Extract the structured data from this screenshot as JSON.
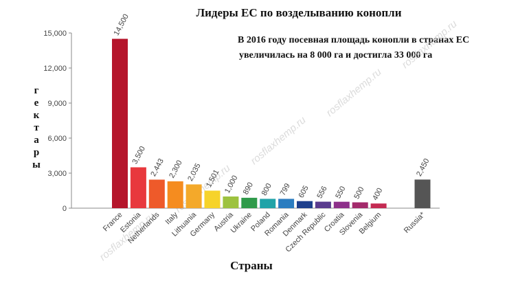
{
  "chart_data": {
    "type": "bar",
    "title": "Лидеры ЕС по возделыванию конопли",
    "annotation": [
      "В 2016 году посевная площадь конопли в странах ЕС",
      "увеличилась на 8 000 га и достигла 33 000 га"
    ],
    "y_label": "гектары",
    "x_label": "Страны",
    "categories": [
      "France",
      "Estonia",
      "Netherlands",
      "Italy",
      "Lithuania",
      "Germany",
      "Austria",
      "Ukraine",
      "Poland",
      "Romania",
      "Denmark",
      "Czech Republic",
      "Croatia",
      "Slovenia",
      "Belgium",
      "Russia*"
    ],
    "values": [
      14500,
      3500,
      2443,
      2300,
      2035,
      1501,
      1000,
      890,
      800,
      799,
      605,
      556,
      550,
      500,
      400,
      2450
    ],
    "value_labels": [
      "14,500",
      "3,500",
      "2,443",
      "2,300",
      "2,035",
      "1,501",
      "1,000",
      "890",
      "800",
      "799",
      "605",
      "556",
      "550",
      "500",
      "400",
      "2,450"
    ],
    "colors": [
      "#b5152b",
      "#e8383d",
      "#ee5a2a",
      "#f58c1f",
      "#f4a92a",
      "#f6d32a",
      "#9dc23f",
      "#2f9a4a",
      "#21a3a8",
      "#2b7dc0",
      "#1d3f8c",
      "#5a3b8e",
      "#8d2f8a",
      "#a32a6b",
      "#c42a52",
      "#555555"
    ],
    "ylim": [
      0,
      15000
    ],
    "yticks": [
      0,
      {
        "value": 3000,
        "label": "3,000"
      },
      {
        "value": 6000,
        "label": "6,000"
      },
      {
        "value": 9000,
        "label": "9,000"
      },
      {
        "value": 12000,
        "label": "12,000"
      },
      {
        "value": 15000,
        "label": "15,000"
      }
    ],
    "watermarks": [
      "rosflaxhemp.ru",
      "rosflaxhemp.ru",
      "rosflaxhemp.ru",
      "rosflaxhemp.ru",
      "rosflaxhemp.ru"
    ]
  }
}
